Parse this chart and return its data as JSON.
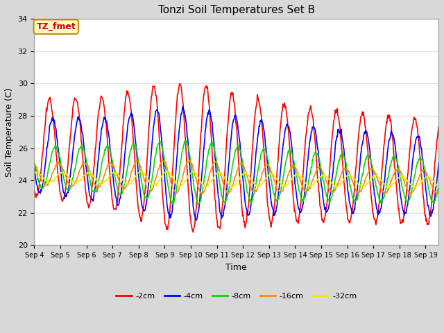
{
  "title": "Tonzi Soil Temperatures Set B",
  "xlabel": "Time",
  "ylabel": "Soil Temperature (C)",
  "ylim": [
    20,
    34
  ],
  "start_day": 4,
  "n_days": 15.5,
  "n_points_per_day": 48,
  "bg_color": "#d8d8d8",
  "plot_bg_color": "#ffffff",
  "grid_color": "#e0e0e0",
  "series_colors": {
    "-2cm": "#ff0000",
    "-4cm": "#0000ff",
    "-8cm": "#00dd00",
    "-16cm": "#ff8800",
    "-32cm": "#eeee00"
  },
  "series_linewidth": 1.2,
  "annotation_text": "TZ_fmet",
  "annotation_bg": "#ffffcc",
  "annotation_border": "#cc8800",
  "annotation_text_color": "#cc0000",
  "yticks": [
    20,
    22,
    24,
    26,
    28,
    30,
    32,
    34
  ],
  "title_fontsize": 11,
  "axis_label_fontsize": 9,
  "tick_fontsize": 8,
  "legend_fontsize": 8
}
